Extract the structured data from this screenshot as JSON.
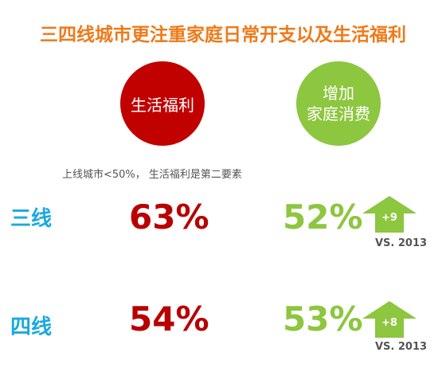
{
  "title": "三四线城市更注重家庭日常开支以及生活福利",
  "circles": {
    "left_label": "生活福利",
    "right_label_line1": "增加",
    "right_label_line2": "家庭消费"
  },
  "note": "上线城市<50%， 生活福利是第二要素",
  "rows": [
    {
      "label": "三线",
      "welfare_pct": "63%",
      "consumption_pct": "52%",
      "change": "+9",
      "vs": "VS. 2013"
    },
    {
      "label": "四线",
      "welfare_pct": "54%",
      "consumption_pct": "53%",
      "change": "+8",
      "vs": "VS. 2013"
    }
  ],
  "colors": {
    "title": "#ee7a1a",
    "red": "#c10000",
    "green": "#8dc63f",
    "label_blue": "#1aa9df"
  }
}
